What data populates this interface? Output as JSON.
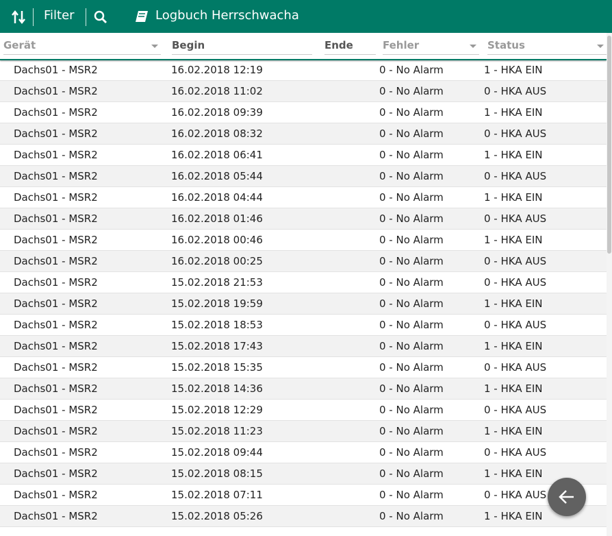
{
  "toolbar": {
    "filter": "Filter",
    "title": "Logbuch Herrschwacha"
  },
  "table": {
    "columns": [
      "Gerät",
      "Begin",
      "Ende",
      "Fehler",
      "Status"
    ],
    "rows": [
      [
        "Dachs01 - MSR2",
        "16.02.2018 12:19",
        "",
        "0 - No Alarm",
        "1 - HKA EIN"
      ],
      [
        "Dachs01 - MSR2",
        "16.02.2018 11:02",
        "",
        "0 - No Alarm",
        "0 - HKA AUS"
      ],
      [
        "Dachs01 - MSR2",
        "16.02.2018 09:39",
        "",
        "0 - No Alarm",
        "1 - HKA EIN"
      ],
      [
        "Dachs01 - MSR2",
        "16.02.2018 08:32",
        "",
        "0 - No Alarm",
        "0 - HKA AUS"
      ],
      [
        "Dachs01 - MSR2",
        "16.02.2018 06:41",
        "",
        "0 - No Alarm",
        "1 - HKA EIN"
      ],
      [
        "Dachs01 - MSR2",
        "16.02.2018 05:44",
        "",
        "0 - No Alarm",
        "0 - HKA AUS"
      ],
      [
        "Dachs01 - MSR2",
        "16.02.2018 04:44",
        "",
        "0 - No Alarm",
        "1 - HKA EIN"
      ],
      [
        "Dachs01 - MSR2",
        "16.02.2018 01:46",
        "",
        "0 - No Alarm",
        "0 - HKA AUS"
      ],
      [
        "Dachs01 - MSR2",
        "16.02.2018 00:46",
        "",
        "0 - No Alarm",
        "1 - HKA EIN"
      ],
      [
        "Dachs01 - MSR2",
        "16.02.2018 00:25",
        "",
        "0 - No Alarm",
        "0 - HKA AUS"
      ],
      [
        "Dachs01 - MSR2",
        "15.02.2018 21:53",
        "",
        "0 - No Alarm",
        "0 - HKA AUS"
      ],
      [
        "Dachs01 - MSR2",
        "15.02.2018 19:59",
        "",
        "0 - No Alarm",
        "1 - HKA EIN"
      ],
      [
        "Dachs01 - MSR2",
        "15.02.2018 18:53",
        "",
        "0 - No Alarm",
        "0 - HKA AUS"
      ],
      [
        "Dachs01 - MSR2",
        "15.02.2018 17:43",
        "",
        "0 - No Alarm",
        "1 - HKA EIN"
      ],
      [
        "Dachs01 - MSR2",
        "15.02.2018 15:35",
        "",
        "0 - No Alarm",
        "0 - HKA AUS"
      ],
      [
        "Dachs01 - MSR2",
        "15.02.2018 14:36",
        "",
        "0 - No Alarm",
        "1 - HKA EIN"
      ],
      [
        "Dachs01 - MSR2",
        "15.02.2018 12:29",
        "",
        "0 - No Alarm",
        "0 - HKA AUS"
      ],
      [
        "Dachs01 - MSR2",
        "15.02.2018 11:23",
        "",
        "0 - No Alarm",
        "1 - HKA EIN"
      ],
      [
        "Dachs01 - MSR2",
        "15.02.2018 09:44",
        "",
        "0 - No Alarm",
        "0 - HKA AUS"
      ],
      [
        "Dachs01 - MSR2",
        "15.02.2018 08:15",
        "",
        "0 - No Alarm",
        "1 - HKA EIN"
      ],
      [
        "Dachs01 - MSR2",
        "15.02.2018 07:11",
        "",
        "0 - No Alarm",
        "0 - HKA AUS"
      ],
      [
        "Dachs01 - MSR2",
        "15.02.2018 05:26",
        "",
        "0 - No Alarm",
        "1 - HKA EIN"
      ]
    ]
  }
}
